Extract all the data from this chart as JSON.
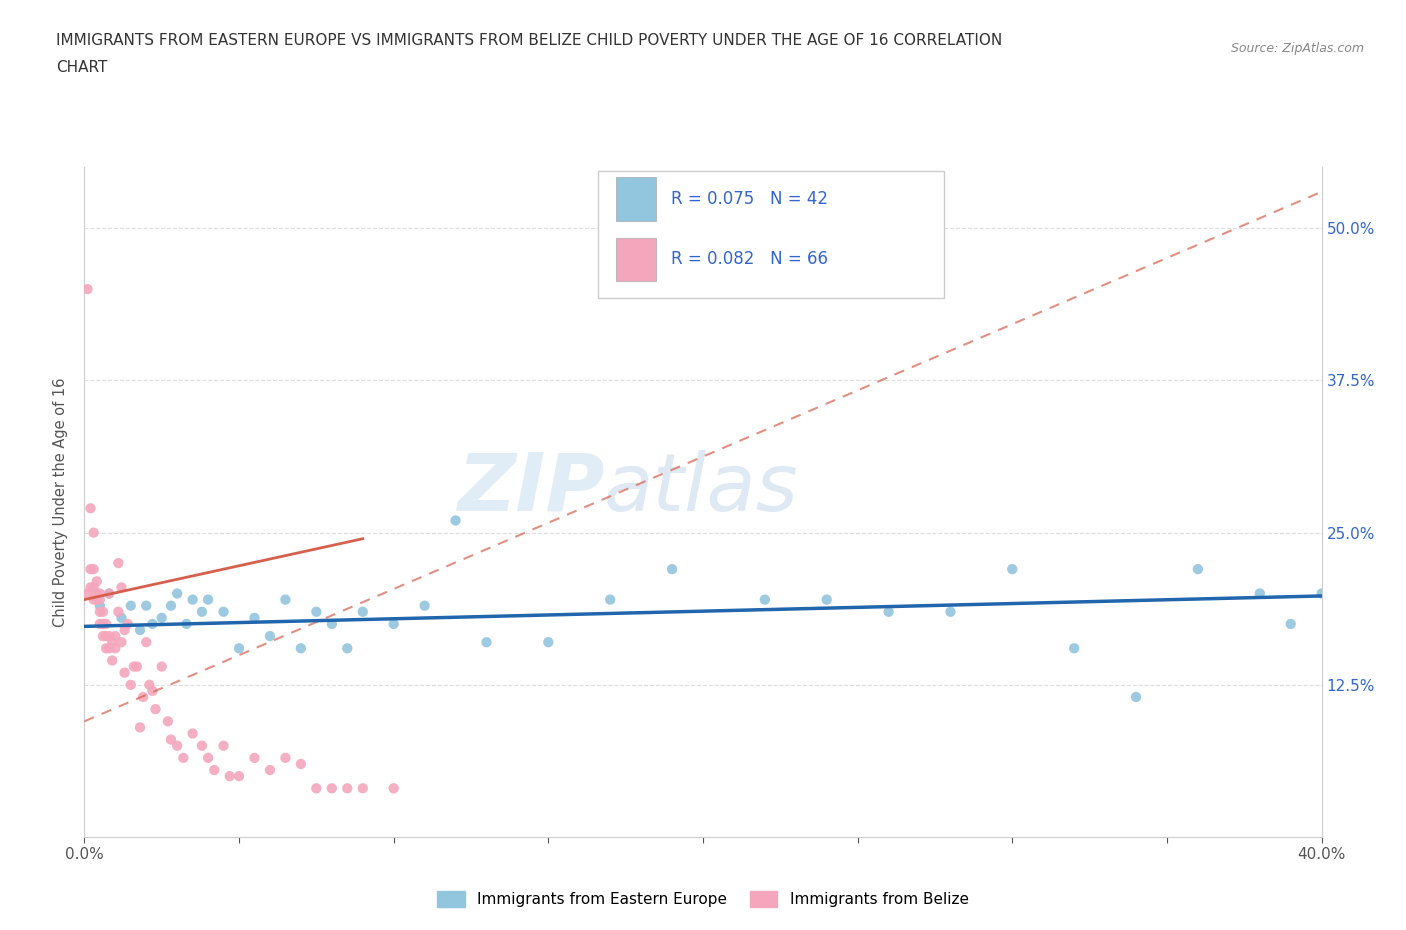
{
  "title_line1": "IMMIGRANTS FROM EASTERN EUROPE VS IMMIGRANTS FROM BELIZE CHILD POVERTY UNDER THE AGE OF 16 CORRELATION",
  "title_line2": "CHART",
  "source_text": "Source: ZipAtlas.com",
  "watermark": "ZIPatlas",
  "xlabel_blue": "Immigrants from Eastern Europe",
  "xlabel_pink": "Immigrants from Belize",
  "ylabel": "Child Poverty Under the Age of 16",
  "xlim": [
    0.0,
    0.4
  ],
  "ylim": [
    0.0,
    0.55
  ],
  "yticks": [
    0.125,
    0.25,
    0.375,
    0.5
  ],
  "ytick_labels": [
    "12.5%",
    "25.0%",
    "37.5%",
    "50.0%"
  ],
  "xtick_positions": [
    0.0,
    0.05,
    0.1,
    0.15,
    0.2,
    0.25,
    0.3,
    0.35,
    0.4
  ],
  "blue_color": "#92c5de",
  "pink_color": "#f4a6bd",
  "trend_blue_color": "#2166ac",
  "trend_pink_color": "#d6604d",
  "trend_pink_dash_color": "#f4a6bd",
  "legend_text_color": "#3366cc",
  "R_blue": 0.075,
  "N_blue": 42,
  "R_pink": 0.082,
  "N_pink": 66,
  "blue_x": [
    0.005,
    0.008,
    0.012,
    0.015,
    0.018,
    0.02,
    0.022,
    0.025,
    0.028,
    0.03,
    0.033,
    0.035,
    0.038,
    0.04,
    0.045,
    0.05,
    0.055,
    0.06,
    0.065,
    0.07,
    0.075,
    0.08,
    0.085,
    0.09,
    0.1,
    0.11,
    0.12,
    0.13,
    0.15,
    0.17,
    0.19,
    0.22,
    0.24,
    0.26,
    0.28,
    0.3,
    0.32,
    0.34,
    0.36,
    0.38,
    0.39,
    0.4
  ],
  "blue_y": [
    0.19,
    0.2,
    0.18,
    0.19,
    0.17,
    0.19,
    0.175,
    0.18,
    0.19,
    0.2,
    0.175,
    0.195,
    0.185,
    0.195,
    0.185,
    0.155,
    0.18,
    0.165,
    0.195,
    0.155,
    0.185,
    0.175,
    0.155,
    0.185,
    0.175,
    0.19,
    0.26,
    0.16,
    0.16,
    0.195,
    0.22,
    0.195,
    0.195,
    0.185,
    0.185,
    0.22,
    0.155,
    0.115,
    0.22,
    0.2,
    0.175,
    0.2
  ],
  "pink_x": [
    0.001,
    0.001,
    0.002,
    0.002,
    0.002,
    0.003,
    0.003,
    0.003,
    0.003,
    0.004,
    0.004,
    0.004,
    0.005,
    0.005,
    0.005,
    0.005,
    0.006,
    0.006,
    0.006,
    0.007,
    0.007,
    0.007,
    0.008,
    0.008,
    0.008,
    0.009,
    0.009,
    0.01,
    0.01,
    0.011,
    0.011,
    0.012,
    0.012,
    0.013,
    0.013,
    0.014,
    0.015,
    0.016,
    0.017,
    0.018,
    0.019,
    0.02,
    0.021,
    0.022,
    0.023,
    0.025,
    0.027,
    0.028,
    0.03,
    0.032,
    0.035,
    0.038,
    0.04,
    0.042,
    0.045,
    0.047,
    0.05,
    0.055,
    0.06,
    0.065,
    0.07,
    0.075,
    0.08,
    0.085,
    0.09,
    0.1
  ],
  "pink_y": [
    0.45,
    0.2,
    0.27,
    0.22,
    0.205,
    0.25,
    0.22,
    0.205,
    0.195,
    0.21,
    0.195,
    0.2,
    0.2,
    0.195,
    0.185,
    0.175,
    0.185,
    0.175,
    0.165,
    0.175,
    0.165,
    0.155,
    0.165,
    0.155,
    0.2,
    0.16,
    0.145,
    0.165,
    0.155,
    0.185,
    0.225,
    0.16,
    0.205,
    0.17,
    0.135,
    0.175,
    0.125,
    0.14,
    0.14,
    0.09,
    0.115,
    0.16,
    0.125,
    0.12,
    0.105,
    0.14,
    0.095,
    0.08,
    0.075,
    0.065,
    0.085,
    0.075,
    0.065,
    0.055,
    0.075,
    0.05,
    0.05,
    0.065,
    0.055,
    0.065,
    0.06,
    0.04,
    0.04,
    0.04,
    0.04,
    0.04
  ],
  "grid_color": "#dddddd",
  "spine_color": "#cccccc",
  "background_color": "#ffffff"
}
